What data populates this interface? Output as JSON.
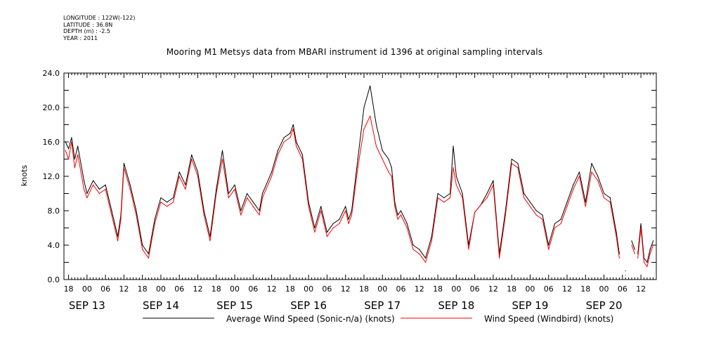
{
  "header": {
    "longitude": "LONGITUDE : 122W(-122)",
    "latitude": "LATITUDE : 36.8N",
    "depth": "DEPTH (m) : -2.5",
    "year": "YEAR : 2011"
  },
  "chart_data": {
    "type": "line",
    "title": "Mooring M1 Metsys data from MBARI instrument id 1396 at original sampling intervals",
    "ylabel": "knots",
    "xlabel": "",
    "ylim": [
      0,
      24
    ],
    "y_ticks": [
      "0.0",
      "4.0",
      "8.0",
      "12.0",
      "16.0",
      "20.0",
      "24.0"
    ],
    "x_unit": "hours since Sep 13 00:00 (2011)",
    "xlim": [
      -7.5,
      185
    ],
    "x_hour_ticks": [
      "18",
      "00",
      "06",
      "12",
      "18",
      "00",
      "06",
      "12",
      "18",
      "00",
      "06",
      "12",
      "18",
      "00",
      "06",
      "12",
      "18",
      "00",
      "06",
      "12",
      "18",
      "00",
      "06",
      "12",
      "18",
      "00",
      "06",
      "12",
      "18",
      "00",
      "06",
      "12"
    ],
    "x_date_labels": [
      "SEP 13",
      "SEP 14",
      "SEP 15",
      "SEP 16",
      "SEP 17",
      "SEP 18",
      "SEP 19",
      "SEP 20"
    ],
    "grid": false,
    "legend": "bottom",
    "series": [
      {
        "name": "Average Wind Speed (Sonic-n/a) (knots)",
        "color": "#000000",
        "x": [
          -7,
          -6,
          -5,
          -4,
          -3,
          -1,
          0,
          2,
          4,
          6,
          8,
          9,
          10,
          11,
          12,
          14,
          16,
          18,
          20,
          22,
          24,
          26,
          28,
          30,
          32,
          34,
          36,
          38,
          40,
          42,
          44,
          46,
          48,
          50,
          52,
          54,
          56,
          57,
          60,
          62,
          64,
          66,
          67,
          68,
          70,
          72,
          73,
          74,
          76,
          78,
          80,
          82,
          84,
          85,
          86,
          88,
          90,
          92,
          94,
          96,
          98,
          99,
          100,
          101,
          102,
          104,
          106,
          108,
          110,
          112,
          114,
          116,
          118,
          119,
          120,
          122,
          124,
          126,
          128,
          130,
          132,
          134,
          136,
          138,
          140,
          142,
          144,
          146,
          148,
          150,
          152,
          154,
          156,
          158,
          160,
          162,
          164,
          166,
          168,
          170,
          172,
          173,
          175,
          177,
          178,
          179,
          180,
          181,
          182,
          183,
          184
        ],
        "values": [
          16.0,
          15.2,
          16.5,
          14.0,
          15.5,
          11.5,
          10.0,
          11.5,
          10.5,
          11.0,
          8.0,
          6.5,
          5.0,
          7.5,
          13.5,
          11.0,
          8.0,
          4.0,
          3.0,
          7.0,
          9.5,
          9.0,
          9.5,
          12.5,
          11.0,
          14.5,
          12.5,
          8.0,
          5.0,
          10.5,
          15.0,
          10.0,
          11.0,
          8.0,
          10.0,
          9.0,
          8.0,
          10.0,
          12.5,
          15.0,
          16.5,
          17.0,
          18.0,
          16.0,
          14.5,
          9.0,
          7.5,
          6.0,
          8.5,
          5.5,
          6.5,
          7.0,
          8.5,
          7.0,
          8.0,
          14.0,
          20.0,
          22.5,
          18.0,
          15.0,
          14.0,
          13.0,
          9.0,
          7.5,
          8.0,
          6.5,
          4.0,
          3.5,
          2.5,
          5.0,
          10.0,
          9.5,
          10.0,
          15.5,
          12.0,
          10.0,
          4.0,
          7.8,
          8.7,
          10.0,
          11.5,
          3.0,
          8.0,
          14.0,
          13.5,
          10.0,
          9.0,
          8.0,
          7.5,
          4.0,
          6.5,
          7.0,
          9.0,
          11.0,
          12.5,
          9.0,
          13.5,
          12.0,
          10.0,
          9.5,
          5.5,
          3.0,
          1.0,
          4.5,
          3.5,
          3.0,
          6.5,
          2.5,
          2.0,
          3.5,
          4.5
        ],
        "gaps_after_x": [
          173,
          175,
          178
        ]
      },
      {
        "name": "Wind Speed (Windbird) (knots)",
        "color": "#ff0000",
        "x": [
          -7,
          -6,
          -5,
          -4,
          -3,
          -1,
          0,
          2,
          4,
          6,
          8,
          9,
          10,
          11,
          12,
          14,
          16,
          18,
          20,
          22,
          24,
          26,
          28,
          30,
          32,
          34,
          36,
          38,
          40,
          42,
          44,
          46,
          48,
          50,
          52,
          54,
          56,
          57,
          60,
          62,
          64,
          66,
          67,
          68,
          70,
          72,
          73,
          74,
          76,
          78,
          80,
          82,
          84,
          85,
          86,
          88,
          90,
          92,
          94,
          96,
          98,
          99,
          100,
          101,
          102,
          104,
          106,
          108,
          110,
          112,
          114,
          116,
          118,
          119,
          120,
          122,
          124,
          126,
          128,
          130,
          132,
          134,
          136,
          138,
          140,
          142,
          144,
          146,
          148,
          150,
          152,
          154,
          156,
          158,
          160,
          162,
          164,
          166,
          168,
          170,
          172,
          173,
          175,
          177,
          178,
          179,
          180,
          181,
          182,
          183,
          184
        ],
        "values": [
          15.0,
          14.0,
          16.0,
          13.0,
          14.5,
          10.5,
          9.5,
          11.0,
          10.0,
          10.5,
          7.5,
          6.0,
          4.5,
          7.0,
          13.0,
          10.5,
          7.5,
          3.5,
          2.5,
          6.5,
          9.0,
          8.5,
          9.0,
          12.0,
          10.5,
          14.0,
          12.0,
          7.5,
          4.5,
          10.0,
          14.0,
          9.5,
          10.5,
          7.5,
          9.5,
          8.5,
          7.5,
          9.5,
          12.0,
          14.5,
          16.0,
          16.5,
          17.5,
          15.5,
          14.0,
          8.5,
          7.0,
          5.5,
          8.0,
          5.0,
          6.0,
          6.5,
          8.0,
          6.5,
          7.5,
          13.0,
          17.5,
          19.0,
          15.5,
          14.0,
          12.5,
          12.0,
          8.5,
          7.0,
          7.5,
          6.0,
          3.5,
          3.0,
          2.0,
          4.5,
          9.5,
          9.0,
          9.5,
          13.0,
          11.0,
          9.5,
          3.5,
          7.8,
          8.7,
          9.5,
          11.0,
          2.5,
          7.5,
          13.5,
          13.0,
          9.5,
          8.5,
          7.5,
          7.0,
          3.5,
          6.0,
          6.5,
          8.5,
          10.5,
          12.0,
          8.5,
          12.5,
          11.5,
          9.5,
          9.0,
          5.0,
          2.5,
          0.5,
          4.0,
          3.0,
          2.5,
          6.0,
          2.0,
          1.5,
          3.0,
          4.0
        ],
        "gaps_after_x": [
          173,
          175,
          178
        ]
      }
    ]
  }
}
